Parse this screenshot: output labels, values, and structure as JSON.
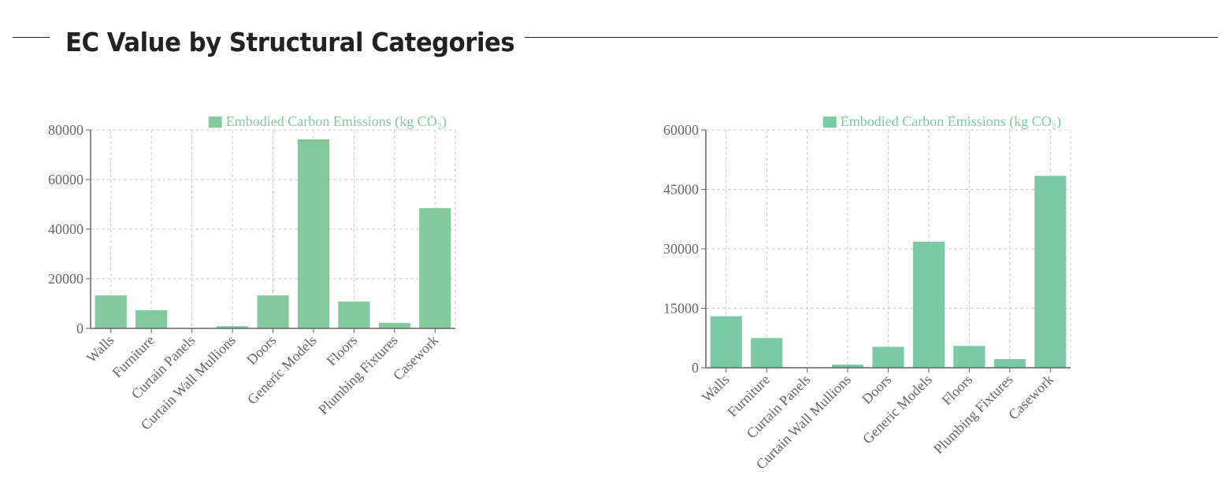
{
  "header": {
    "title": "EC Value by Structural Categories"
  },
  "chart_data": [
    {
      "type": "bar",
      "title": "",
      "xlabel": "",
      "ylabel": "",
      "legend": "Embodied Carbon Emissions (kg CO₂)",
      "legend_position": "top-right",
      "color": "#82c99d",
      "grid": true,
      "ylim": [
        0,
        80000
      ],
      "yticks": [
        "0",
        "20000",
        "40000",
        "60000",
        "80000"
      ],
      "categories": [
        "Walls",
        "Furniture",
        "Curtain Panels",
        "Curtain Wall Mullions",
        "Doors",
        "Generic Models",
        "Floors",
        "Plumbing Fixtures",
        "Casework"
      ],
      "values": [
        13300,
        7300,
        150,
        900,
        13300,
        76200,
        10800,
        2200,
        48500
      ]
    },
    {
      "type": "bar",
      "title": "",
      "xlabel": "",
      "ylabel": "",
      "legend": "Embodied Carbon Emissions (kg CO₂)",
      "legend_position": "top-right",
      "color": "#7acba5",
      "grid": true,
      "ylim": [
        0,
        60000
      ],
      "yticks": [
        "0",
        "15000",
        "30000",
        "45000",
        "60000"
      ],
      "categories": [
        "Walls",
        "Furniture",
        "Curtain Panels",
        "Curtain Wall Mullions",
        "Doors",
        "Generic Models",
        "Floors",
        "Plumbing Fixtures",
        "Casework"
      ],
      "values": [
        13000,
        7500,
        100,
        800,
        5300,
        31800,
        5500,
        2200,
        48400
      ]
    }
  ]
}
